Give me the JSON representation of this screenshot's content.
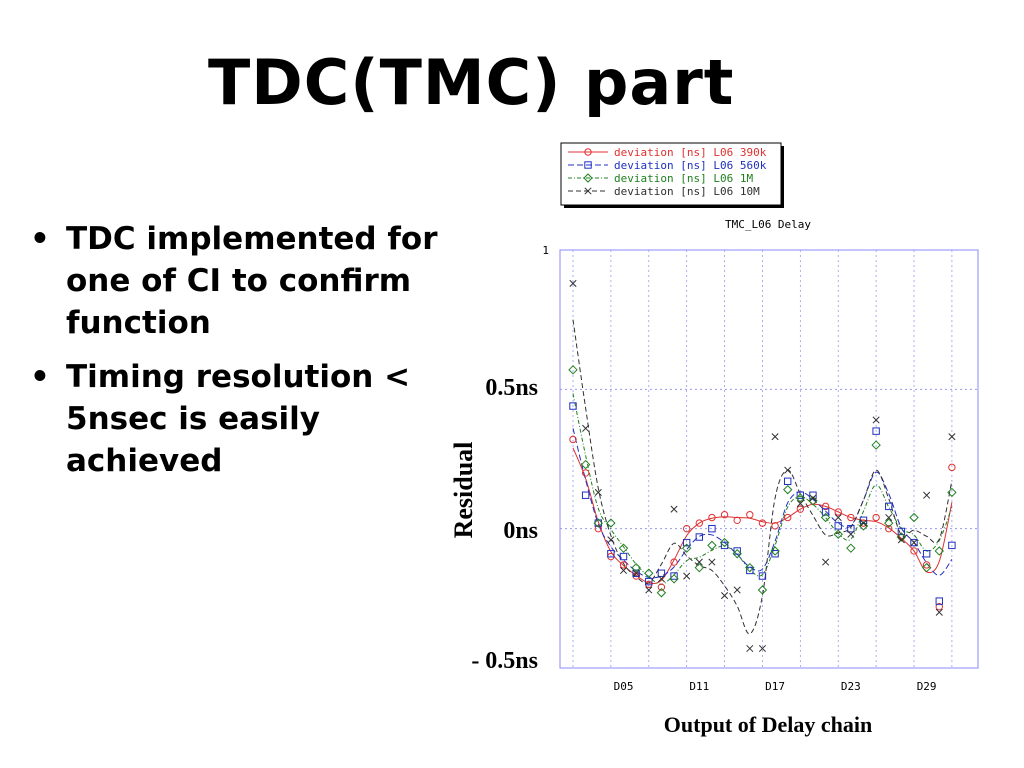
{
  "slide": {
    "title": "TDC(TMC) part",
    "bullets": [
      "TDC implemented for one of CI to confirm function",
      "Timing resolution < 5nsec is easily achieved"
    ]
  },
  "chart_data": {
    "type": "line",
    "title": "TMC_L06 Delay",
    "xlabel": "Output of Delay chain",
    "ylabel": "Residual",
    "x_tick_labels": [
      "D05",
      "D11",
      "D17",
      "D23",
      "D29"
    ],
    "y_axis_labels": [
      "0.5ns",
      "0ns",
      "- 0.5ns"
    ],
    "y_top_label": "1",
    "ylim": [
      -0.5,
      1
    ],
    "grid": true,
    "legend_position": "top",
    "x": [
      1,
      2,
      3,
      4,
      5,
      6,
      7,
      8,
      9,
      10,
      11,
      12,
      13,
      14,
      15,
      16,
      17,
      18,
      19,
      20,
      21,
      22,
      23,
      24,
      25,
      26,
      27,
      28,
      29,
      30,
      31
    ],
    "series": [
      {
        "name": "deviation [ns] L06 390k",
        "color": "#e03030",
        "marker": "circle",
        "values": [
          0.32,
          0.2,
          0.0,
          -0.1,
          -0.13,
          -0.17,
          -0.2,
          -0.21,
          -0.12,
          0.0,
          0.02,
          0.04,
          0.05,
          0.03,
          0.05,
          0.02,
          0.01,
          0.04,
          0.07,
          0.1,
          0.08,
          0.06,
          0.04,
          0.02,
          0.04,
          0.0,
          -0.03,
          -0.08,
          -0.13,
          -0.28,
          0.22
        ]
      },
      {
        "name": "deviation [ns] L06 560k",
        "color": "#2030c0",
        "marker": "square",
        "values": [
          0.44,
          0.12,
          0.02,
          -0.09,
          -0.1,
          -0.16,
          -0.19,
          -0.16,
          -0.17,
          -0.05,
          -0.03,
          0.0,
          -0.06,
          -0.08,
          -0.15,
          -0.17,
          -0.09,
          0.17,
          0.12,
          0.12,
          0.06,
          0.01,
          0.0,
          0.03,
          0.35,
          0.08,
          -0.01,
          -0.05,
          -0.09,
          -0.26,
          -0.06
        ]
      },
      {
        "name": "deviation [ns] L06 1M",
        "color": "#208020",
        "marker": "diamond",
        "values": [
          0.57,
          0.23,
          0.02,
          0.02,
          -0.07,
          -0.14,
          -0.16,
          -0.23,
          -0.18,
          -0.07,
          -0.14,
          -0.06,
          -0.05,
          -0.09,
          -0.14,
          -0.22,
          -0.08,
          0.14,
          0.11,
          0.1,
          0.04,
          -0.02,
          -0.07,
          0.01,
          0.3,
          0.02,
          -0.03,
          0.04,
          -0.14,
          -0.08,
          0.13
        ]
      },
      {
        "name": "deviation [ns] L06 10M",
        "color": "#303030",
        "marker": "cross",
        "values": [
          0.88,
          0.36,
          0.13,
          -0.04,
          -0.15,
          -0.16,
          -0.22,
          -0.18,
          0.07,
          -0.17,
          -0.12,
          -0.12,
          -0.24,
          -0.22,
          -0.43,
          -0.43,
          0.33,
          0.21,
          0.09,
          0.11,
          -0.12,
          0.04,
          -0.02,
          0.02,
          0.39,
          0.04,
          -0.04,
          -0.05,
          0.12,
          -0.3,
          0.33
        ]
      }
    ]
  }
}
